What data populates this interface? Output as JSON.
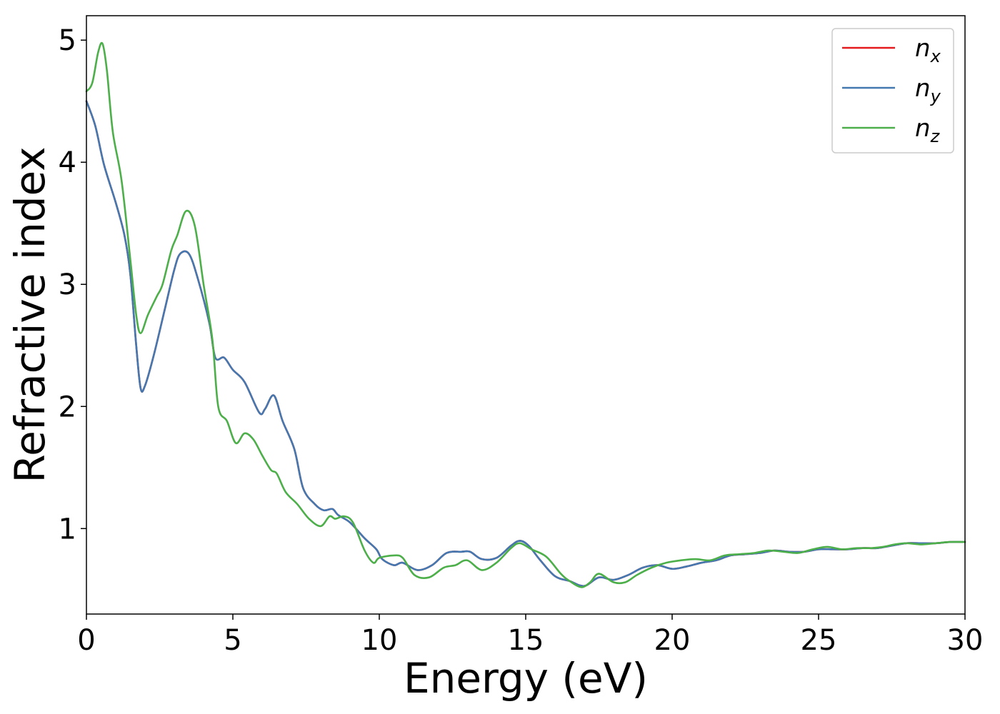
{
  "chart_data": {
    "type": "line",
    "title": "",
    "xlabel": "Energy (eV)",
    "ylabel": "Refractive index",
    "xlim": [
      0,
      30
    ],
    "ylim": [
      0.3,
      5.2
    ],
    "xticks": [
      0,
      5,
      10,
      15,
      20,
      25,
      30
    ],
    "yticks": [
      1,
      2,
      3,
      4,
      5
    ],
    "grid": false,
    "legend_position": "top-right",
    "series": [
      {
        "name": "n",
        "subscript": "x",
        "color": "#e41a1c",
        "points": [
          [
            0,
            4.5
          ],
          [
            0.3,
            4.3
          ],
          [
            0.6,
            3.98
          ],
          [
            1.0,
            3.67
          ],
          [
            1.3,
            3.4
          ],
          [
            1.5,
            3.08
          ],
          [
            1.7,
            2.5
          ],
          [
            1.85,
            2.15
          ],
          [
            2.0,
            2.17
          ],
          [
            2.3,
            2.42
          ],
          [
            2.7,
            2.82
          ],
          [
            3.0,
            3.12
          ],
          [
            3.2,
            3.25
          ],
          [
            3.5,
            3.25
          ],
          [
            3.8,
            3.05
          ],
          [
            4.2,
            2.68
          ],
          [
            4.4,
            2.4
          ],
          [
            4.7,
            2.4
          ],
          [
            5.0,
            2.3
          ],
          [
            5.4,
            2.2
          ],
          [
            5.9,
            1.95
          ],
          [
            6.1,
            1.98
          ],
          [
            6.4,
            2.09
          ],
          [
            6.7,
            1.88
          ],
          [
            7.1,
            1.65
          ],
          [
            7.4,
            1.33
          ],
          [
            7.8,
            1.2
          ],
          [
            8.1,
            1.15
          ],
          [
            8.4,
            1.16
          ],
          [
            8.6,
            1.11
          ],
          [
            9.0,
            1.05
          ],
          [
            9.5,
            0.92
          ],
          [
            9.9,
            0.83
          ],
          [
            10.1,
            0.75
          ],
          [
            10.5,
            0.7
          ],
          [
            10.8,
            0.72
          ],
          [
            11.3,
            0.66
          ],
          [
            11.8,
            0.7
          ],
          [
            12.3,
            0.8
          ],
          [
            12.8,
            0.81
          ],
          [
            13.1,
            0.81
          ],
          [
            13.5,
            0.75
          ],
          [
            14.0,
            0.76
          ],
          [
            14.5,
            0.86
          ],
          [
            14.8,
            0.9
          ],
          [
            15.1,
            0.86
          ],
          [
            15.5,
            0.74
          ],
          [
            16.0,
            0.61
          ],
          [
            16.5,
            0.57
          ],
          [
            17.0,
            0.53
          ],
          [
            17.5,
            0.6
          ],
          [
            18.0,
            0.58
          ],
          [
            18.5,
            0.62
          ],
          [
            19.0,
            0.68
          ],
          [
            19.5,
            0.7
          ],
          [
            20.0,
            0.67
          ],
          [
            20.5,
            0.69
          ],
          [
            21.0,
            0.72
          ],
          [
            21.5,
            0.74
          ],
          [
            22.0,
            0.78
          ],
          [
            22.5,
            0.79
          ],
          [
            23.0,
            0.8
          ],
          [
            23.5,
            0.82
          ],
          [
            24.0,
            0.81
          ],
          [
            24.5,
            0.81
          ],
          [
            25.0,
            0.83
          ],
          [
            25.5,
            0.83
          ],
          [
            26.0,
            0.83
          ],
          [
            26.5,
            0.84
          ],
          [
            27.0,
            0.84
          ],
          [
            27.5,
            0.86
          ],
          [
            28.0,
            0.88
          ],
          [
            28.5,
            0.88
          ],
          [
            29.0,
            0.88
          ],
          [
            29.5,
            0.89
          ],
          [
            30.0,
            0.89
          ]
        ]
      },
      {
        "name": "n",
        "subscript": "y",
        "color": "#4478b0",
        "points": [
          [
            0,
            4.5
          ],
          [
            0.3,
            4.3
          ],
          [
            0.6,
            3.98
          ],
          [
            1.0,
            3.67
          ],
          [
            1.3,
            3.4
          ],
          [
            1.5,
            3.08
          ],
          [
            1.7,
            2.5
          ],
          [
            1.85,
            2.15
          ],
          [
            2.0,
            2.17
          ],
          [
            2.3,
            2.42
          ],
          [
            2.7,
            2.82
          ],
          [
            3.0,
            3.12
          ],
          [
            3.2,
            3.25
          ],
          [
            3.5,
            3.25
          ],
          [
            3.8,
            3.05
          ],
          [
            4.2,
            2.68
          ],
          [
            4.4,
            2.4
          ],
          [
            4.7,
            2.4
          ],
          [
            5.0,
            2.3
          ],
          [
            5.4,
            2.2
          ],
          [
            5.9,
            1.95
          ],
          [
            6.1,
            1.98
          ],
          [
            6.4,
            2.09
          ],
          [
            6.7,
            1.88
          ],
          [
            7.1,
            1.65
          ],
          [
            7.4,
            1.33
          ],
          [
            7.8,
            1.2
          ],
          [
            8.1,
            1.15
          ],
          [
            8.4,
            1.16
          ],
          [
            8.6,
            1.11
          ],
          [
            9.0,
            1.05
          ],
          [
            9.5,
            0.92
          ],
          [
            9.9,
            0.83
          ],
          [
            10.1,
            0.75
          ],
          [
            10.5,
            0.7
          ],
          [
            10.8,
            0.72
          ],
          [
            11.3,
            0.66
          ],
          [
            11.8,
            0.7
          ],
          [
            12.3,
            0.8
          ],
          [
            12.8,
            0.81
          ],
          [
            13.1,
            0.81
          ],
          [
            13.5,
            0.75
          ],
          [
            14.0,
            0.76
          ],
          [
            14.5,
            0.86
          ],
          [
            14.8,
            0.9
          ],
          [
            15.1,
            0.86
          ],
          [
            15.5,
            0.74
          ],
          [
            16.0,
            0.61
          ],
          [
            16.5,
            0.57
          ],
          [
            17.0,
            0.53
          ],
          [
            17.5,
            0.6
          ],
          [
            18.0,
            0.58
          ],
          [
            18.5,
            0.62
          ],
          [
            19.0,
            0.68
          ],
          [
            19.5,
            0.7
          ],
          [
            20.0,
            0.67
          ],
          [
            20.5,
            0.69
          ],
          [
            21.0,
            0.72
          ],
          [
            21.5,
            0.74
          ],
          [
            22.0,
            0.78
          ],
          [
            22.5,
            0.79
          ],
          [
            23.0,
            0.8
          ],
          [
            23.5,
            0.82
          ],
          [
            24.0,
            0.81
          ],
          [
            24.5,
            0.81
          ],
          [
            25.0,
            0.83
          ],
          [
            25.5,
            0.83
          ],
          [
            26.0,
            0.83
          ],
          [
            26.5,
            0.84
          ],
          [
            27.0,
            0.84
          ],
          [
            27.5,
            0.86
          ],
          [
            28.0,
            0.88
          ],
          [
            28.5,
            0.88
          ],
          [
            29.0,
            0.88
          ],
          [
            29.5,
            0.89
          ],
          [
            30.0,
            0.89
          ]
        ]
      },
      {
        "name": "n",
        "subscript": "z",
        "color": "#4daf4a",
        "points": [
          [
            0,
            4.58
          ],
          [
            0.2,
            4.65
          ],
          [
            0.4,
            4.9
          ],
          [
            0.55,
            4.97
          ],
          [
            0.7,
            4.75
          ],
          [
            0.9,
            4.25
          ],
          [
            1.2,
            3.85
          ],
          [
            1.5,
            3.2
          ],
          [
            1.7,
            2.75
          ],
          [
            1.85,
            2.6
          ],
          [
            2.1,
            2.75
          ],
          [
            2.4,
            2.9
          ],
          [
            2.6,
            3.0
          ],
          [
            2.9,
            3.28
          ],
          [
            3.1,
            3.4
          ],
          [
            3.4,
            3.6
          ],
          [
            3.7,
            3.48
          ],
          [
            4.0,
            3.0
          ],
          [
            4.3,
            2.55
          ],
          [
            4.5,
            2.0
          ],
          [
            4.8,
            1.88
          ],
          [
            5.1,
            1.7
          ],
          [
            5.4,
            1.78
          ],
          [
            5.7,
            1.73
          ],
          [
            6.0,
            1.6
          ],
          [
            6.3,
            1.48
          ],
          [
            6.5,
            1.45
          ],
          [
            6.8,
            1.3
          ],
          [
            7.2,
            1.2
          ],
          [
            7.6,
            1.08
          ],
          [
            8.0,
            1.02
          ],
          [
            8.3,
            1.1
          ],
          [
            8.5,
            1.08
          ],
          [
            8.8,
            1.1
          ],
          [
            9.1,
            1.05
          ],
          [
            9.5,
            0.82
          ],
          [
            9.8,
            0.72
          ],
          [
            10.0,
            0.76
          ],
          [
            10.5,
            0.78
          ],
          [
            10.8,
            0.76
          ],
          [
            11.2,
            0.62
          ],
          [
            11.7,
            0.6
          ],
          [
            12.2,
            0.68
          ],
          [
            12.6,
            0.7
          ],
          [
            13.0,
            0.74
          ],
          [
            13.5,
            0.66
          ],
          [
            14.0,
            0.72
          ],
          [
            14.5,
            0.84
          ],
          [
            14.8,
            0.88
          ],
          [
            15.2,
            0.83
          ],
          [
            15.7,
            0.77
          ],
          [
            16.2,
            0.63
          ],
          [
            16.5,
            0.57
          ],
          [
            16.9,
            0.52
          ],
          [
            17.2,
            0.56
          ],
          [
            17.5,
            0.63
          ],
          [
            18.0,
            0.56
          ],
          [
            18.4,
            0.56
          ],
          [
            18.8,
            0.62
          ],
          [
            19.3,
            0.68
          ],
          [
            19.8,
            0.72
          ],
          [
            20.3,
            0.74
          ],
          [
            20.8,
            0.75
          ],
          [
            21.3,
            0.74
          ],
          [
            21.8,
            0.78
          ],
          [
            22.3,
            0.79
          ],
          [
            22.8,
            0.8
          ],
          [
            23.3,
            0.82
          ],
          [
            23.8,
            0.81
          ],
          [
            24.3,
            0.8
          ],
          [
            24.8,
            0.83
          ],
          [
            25.3,
            0.85
          ],
          [
            25.8,
            0.83
          ],
          [
            26.3,
            0.84
          ],
          [
            26.8,
            0.84
          ],
          [
            27.2,
            0.85
          ],
          [
            27.6,
            0.87
          ],
          [
            28.0,
            0.88
          ],
          [
            28.5,
            0.87
          ],
          [
            29.0,
            0.88
          ],
          [
            29.5,
            0.89
          ],
          [
            30.0,
            0.89
          ]
        ]
      }
    ]
  }
}
